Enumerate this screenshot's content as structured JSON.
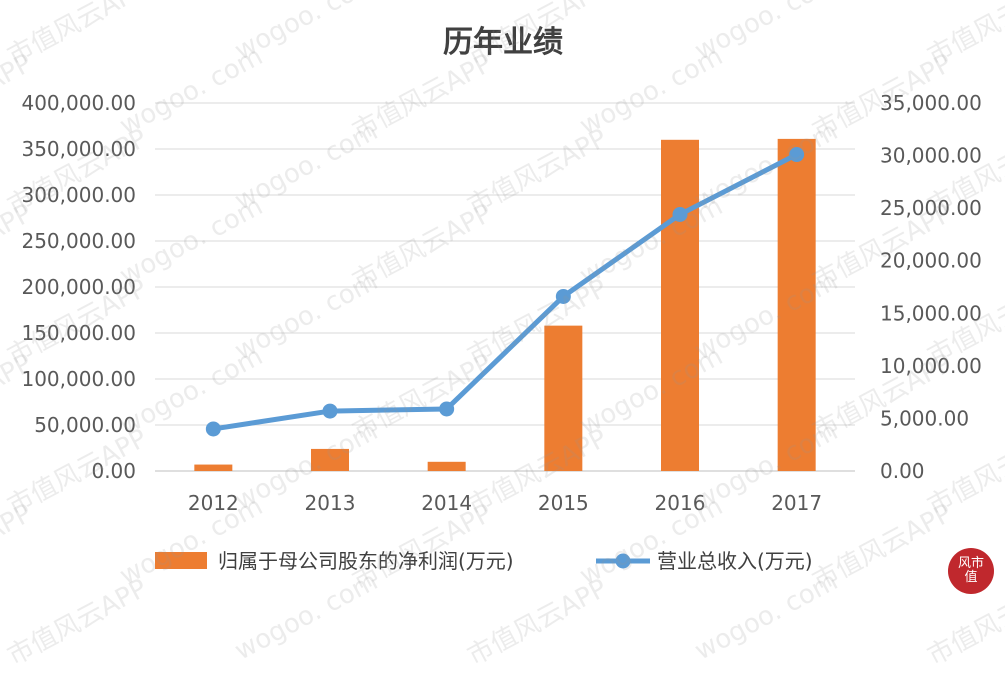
{
  "chart_data": {
    "type": "bar",
    "title": "历年业绩",
    "categories": [
      "2012",
      "2013",
      "2014",
      "2015",
      "2016",
      "2017"
    ],
    "series": [
      {
        "name": "归属于母公司股东的净利润(万元)",
        "type": "bar",
        "axis": "left",
        "color": "#ED7D31",
        "values": [
          7000,
          24000,
          10000,
          158000,
          360000,
          361000
        ]
      },
      {
        "name": "营业总收入(万元)",
        "type": "line",
        "axis": "right",
        "color": "#5B9BD5",
        "values": [
          4000,
          5700,
          5900,
          16600,
          24400,
          30100
        ]
      }
    ],
    "y_left": {
      "min": 0,
      "max": 400000,
      "step": 50000,
      "tick_labels": [
        "0.00",
        "50,000.00",
        "100,000.00",
        "150,000.00",
        "200,000.00",
        "250,000.00",
        "300,000.00",
        "350,000.00",
        "400,000.00"
      ]
    },
    "y_right": {
      "min": 0,
      "max": 35000,
      "step": 5000,
      "tick_labels": [
        "0.00",
        "5,000.00",
        "10,000.00",
        "15,000.00",
        "20,000.00",
        "25,000.00",
        "30,000.00",
        "35,000.00"
      ]
    },
    "grid": true,
    "legend_position": "bottom"
  },
  "watermark": {
    "text_cn": "市值风云APP",
    "text_url": "wogoo. com"
  },
  "logo": {
    "text": "风市值",
    "color": "#C0282D"
  }
}
